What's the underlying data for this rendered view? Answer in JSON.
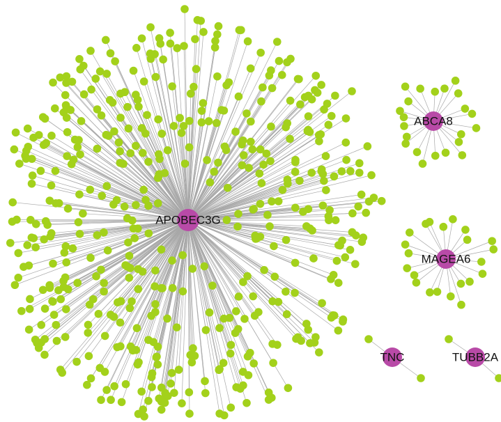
{
  "nodes": [
    {
      "label": "APOBEC3G"
    },
    {
      "label": "ABCA8"
    },
    {
      "label": "MAGEA6"
    },
    {
      "label": "TNC"
    },
    {
      "label": "TUBB2A"
    }
  ]
}
